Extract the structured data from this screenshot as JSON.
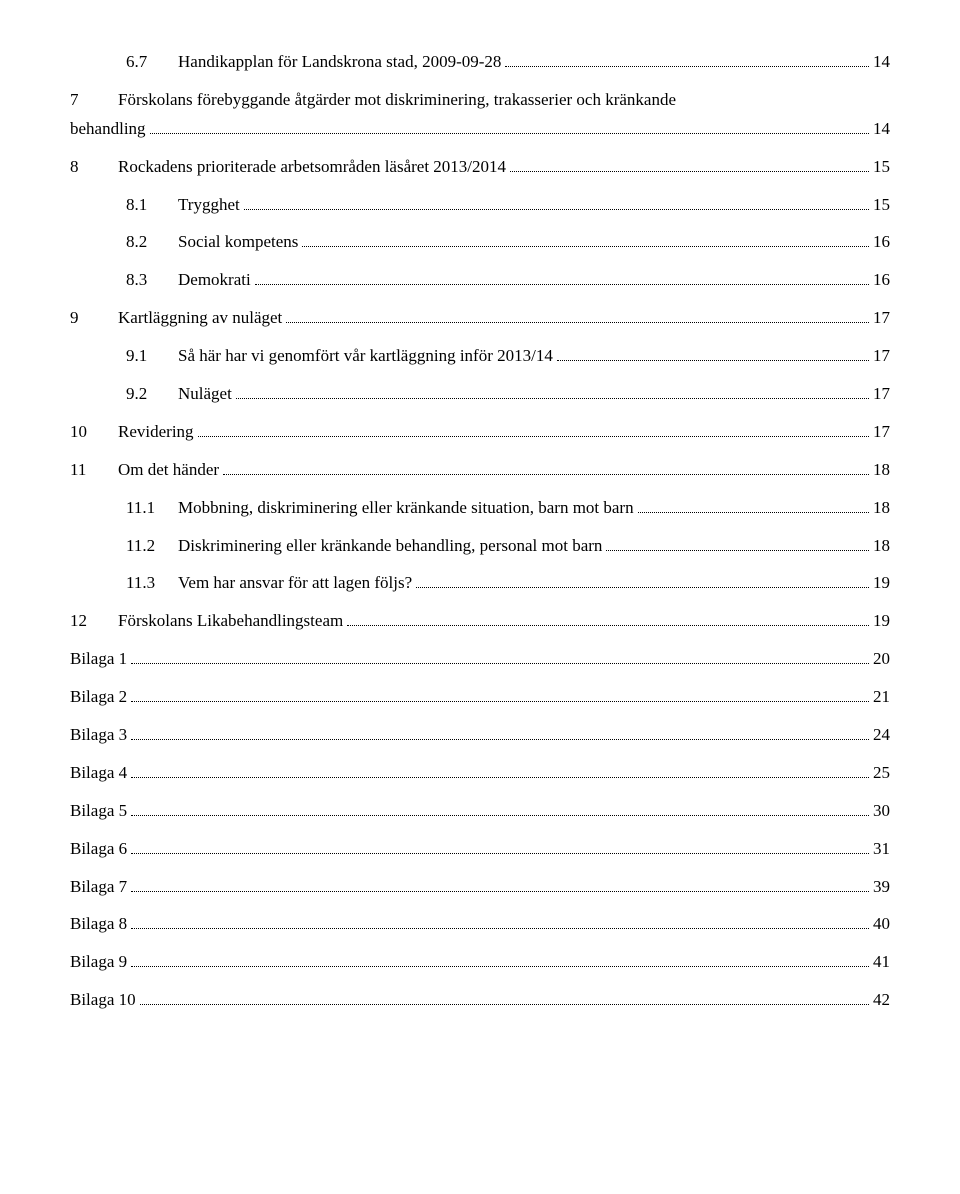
{
  "toc": [
    {
      "level": "sub",
      "num": "6.7",
      "label": "Handikapplan för Landskrona stad, 2009-09-28",
      "page": "14"
    },
    {
      "level": "top",
      "num": "7",
      "label": "Förskolans förebyggande åtgärder mot diskriminering, trakasserier och kränkande",
      "label2": "behandling",
      "page": "14",
      "wrap": true,
      "unindent2": true
    },
    {
      "level": "top",
      "num": "8",
      "label": "Rockadens prioriterade arbetsområden läsåret 2013/2014",
      "page": "15"
    },
    {
      "level": "sub",
      "num": "8.1",
      "label": "Trygghet",
      "page": "15"
    },
    {
      "level": "sub",
      "num": "8.2",
      "label": "Social kompetens",
      "page": "16"
    },
    {
      "level": "sub",
      "num": "8.3",
      "label": "Demokrati",
      "page": "16"
    },
    {
      "level": "top",
      "num": "9",
      "label": "Kartläggning av nuläget",
      "page": "17"
    },
    {
      "level": "sub",
      "num": "9.1",
      "label": "Så här har vi genomfört vår kartläggning inför 2013/14",
      "page": "17"
    },
    {
      "level": "sub",
      "num": "9.2",
      "label": "Nuläget",
      "page": "17"
    },
    {
      "level": "top",
      "num": "10",
      "label": "Revidering",
      "page": "17"
    },
    {
      "level": "top",
      "num": "11",
      "label": "Om det händer",
      "page": "18"
    },
    {
      "level": "sub",
      "num": "11.1",
      "label": "Mobbning, diskriminering eller kränkande situation, barn mot barn",
      "page": "18"
    },
    {
      "level": "sub",
      "num": "11.2",
      "label": "Diskriminering eller kränkande behandling, personal mot barn",
      "page": "18"
    },
    {
      "level": "sub",
      "num": "11.3",
      "label": "Vem har ansvar för att lagen följs?",
      "page": "19"
    },
    {
      "level": "top",
      "num": "12",
      "label": "Förskolans Likabehandlingsteam",
      "page": "19"
    },
    {
      "level": "top",
      "num": "",
      "label": "Bilaga 1",
      "page": "20"
    },
    {
      "level": "top",
      "num": "",
      "label": "Bilaga 2",
      "page": "21"
    },
    {
      "level": "top",
      "num": "",
      "label": "Bilaga 3",
      "page": "24"
    },
    {
      "level": "top",
      "num": "",
      "label": "Bilaga 4",
      "page": "25"
    },
    {
      "level": "top",
      "num": "",
      "label": "Bilaga 5",
      "page": "30"
    },
    {
      "level": "top",
      "num": "",
      "label": "Bilaga 6",
      "page": "31"
    },
    {
      "level": "top",
      "num": "",
      "label": "Bilaga 7",
      "page": "39"
    },
    {
      "level": "top",
      "num": "",
      "label": "Bilaga 8",
      "page": "40"
    },
    {
      "level": "top",
      "num": "",
      "label": "Bilaga 9",
      "page": "41"
    },
    {
      "level": "top",
      "num": "",
      "label": "Bilaga 10",
      "page": "42"
    }
  ]
}
